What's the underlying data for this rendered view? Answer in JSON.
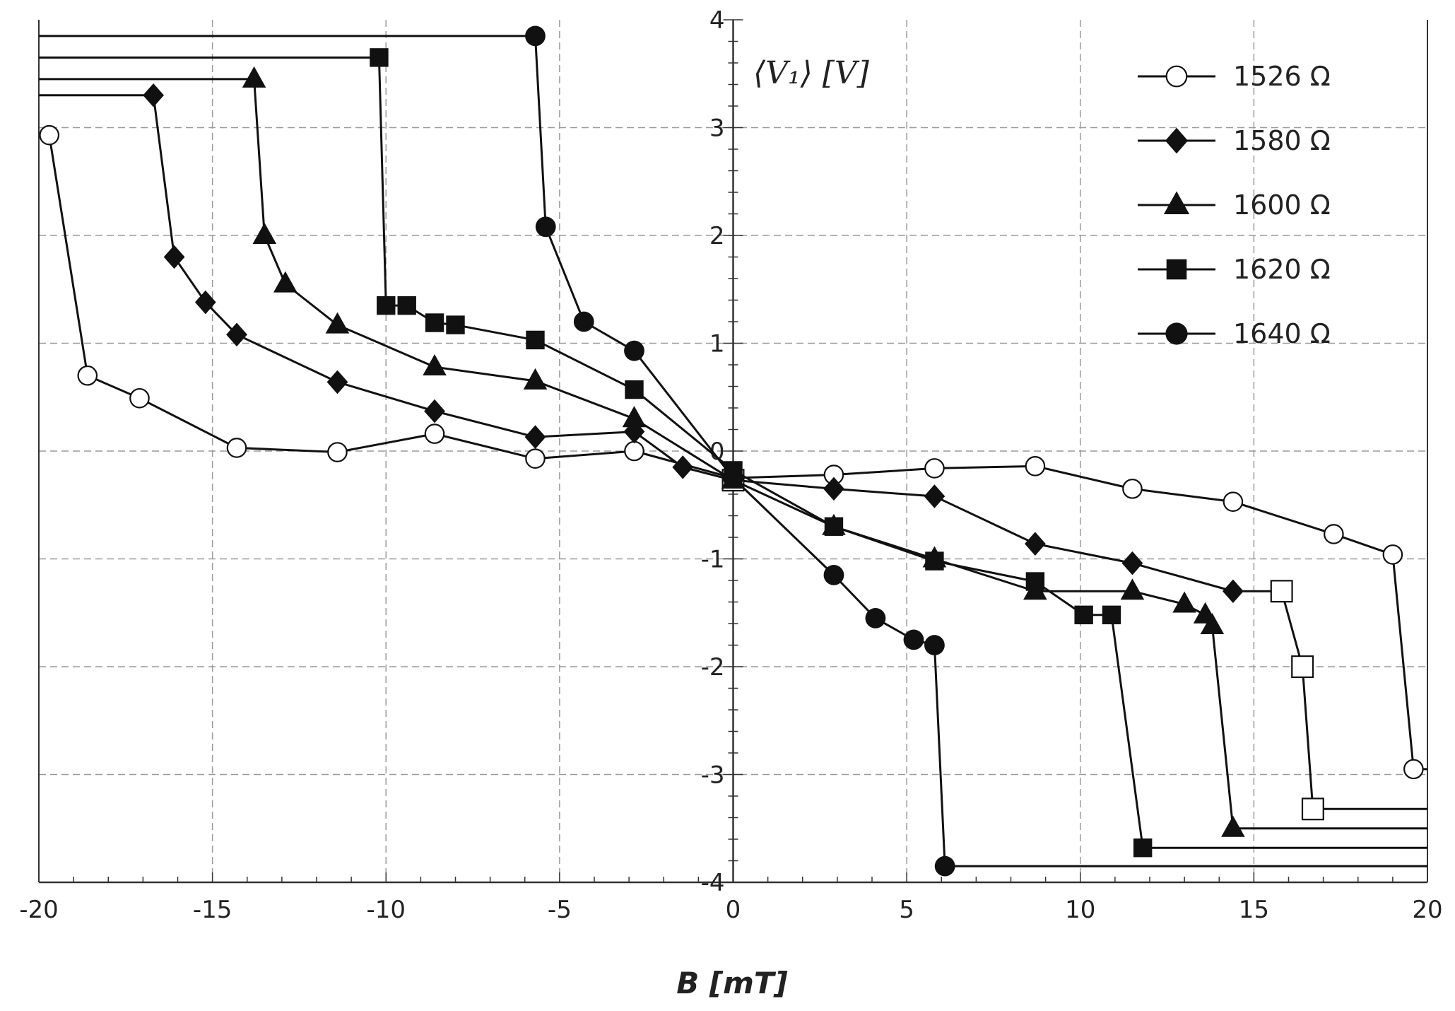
{
  "chart_data": {
    "type": "line",
    "title": "",
    "xlabel": "B  [mT]",
    "ylabel": "⟨V₁⟩ [V]",
    "xlim": [
      -20,
      20
    ],
    "ylim": [
      -4,
      4
    ],
    "xticks": [
      -20,
      -15,
      -10,
      -5,
      0,
      5,
      10,
      15,
      20
    ],
    "yticks": [
      -4,
      -3,
      -2,
      -1,
      0,
      1,
      2,
      3,
      4
    ],
    "grid": true,
    "legend_position": "top-right",
    "series": [
      {
        "name": "1526 Ω",
        "marker": "open-circle",
        "x": [
          -19.7,
          -18.6,
          -17.1,
          -14.3,
          -11.4,
          -8.6,
          -5.7,
          -2.85,
          0,
          2.9,
          5.8,
          8.7,
          11.5,
          14.4,
          17.3,
          19.0,
          19.6
        ],
        "y": [
          2.93,
          0.7,
          0.49,
          0.03,
          -0.01,
          0.16,
          -0.07,
          0.0,
          -0.25,
          -0.22,
          -0.16,
          -0.14,
          -0.35,
          -0.47,
          -0.77,
          -0.96,
          -2.95
        ],
        "guide": {
          "x_from": 19.6,
          "x_to": 20,
          "y": -2.95
        }
      },
      {
        "name": "1580 Ω",
        "marker": "filled-diamond",
        "x": [
          -16.7,
          -16.1,
          -15.2,
          -14.3,
          -11.4,
          -8.6,
          -5.7,
          -2.85,
          -1.45,
          0,
          2.9,
          5.8,
          8.7,
          11.5,
          14.4,
          15.8,
          16.4,
          16.7
        ],
        "y": [
          3.3,
          1.8,
          1.38,
          1.08,
          0.64,
          0.37,
          0.13,
          0.18,
          -0.15,
          -0.27,
          -0.35,
          -0.42,
          -0.86,
          -1.04,
          -1.3,
          -1.3,
          -2.0,
          -3.32
        ],
        "guide": {
          "x_from": -20,
          "x_to": -16.7,
          "y": 3.3
        },
        "guide_end": {
          "x_from": 16.7,
          "x_to": 20,
          "y": -3.32
        }
      },
      {
        "name": "1600 Ω",
        "marker": "filled-triangle",
        "x": [
          -13.8,
          -13.5,
          -12.9,
          -11.4,
          -8.6,
          -5.7,
          -2.85,
          0,
          2.9,
          5.8,
          8.7,
          11.5,
          13.0,
          13.6,
          13.8,
          14.4
        ],
        "y": [
          3.45,
          2.0,
          1.55,
          1.17,
          0.78,
          0.65,
          0.3,
          -0.27,
          -0.7,
          -1.0,
          -1.3,
          -1.3,
          -1.42,
          -1.52,
          -1.62,
          -3.5
        ],
        "guide": {
          "x_from": -20,
          "x_to": -13.8,
          "y": 3.45
        },
        "guide_end": {
          "x_from": 14.4,
          "x_to": 20,
          "y": -3.5
        }
      },
      {
        "name": "1620 Ω",
        "marker": "filled-square",
        "x": [
          -10.2,
          -10.0,
          -9.4,
          -8.6,
          -8.0,
          -5.7,
          -2.85,
          0,
          2.9,
          5.8,
          8.7,
          10.1,
          10.9,
          11.8
        ],
        "y": [
          3.65,
          1.35,
          1.35,
          1.19,
          1.17,
          1.03,
          0.57,
          -0.18,
          -0.7,
          -1.02,
          -1.21,
          -1.52,
          -1.52,
          -3.68
        ],
        "guide": {
          "x_from": -20,
          "x_to": -10.2,
          "y": 3.65
        },
        "guide_end": {
          "x_from": 11.8,
          "x_to": 20,
          "y": -3.68
        }
      },
      {
        "name": "1640 Ω",
        "marker": "filled-circle",
        "x": [
          -5.7,
          -5.4,
          -4.3,
          -2.85,
          0,
          2.9,
          4.1,
          5.2,
          5.8,
          6.1
        ],
        "y": [
          3.85,
          2.08,
          1.2,
          0.93,
          -0.25,
          -1.15,
          -1.55,
          -1.75,
          -1.8,
          -3.85
        ],
        "guide": {
          "x_from": -20,
          "x_to": -5.7,
          "y": 3.85
        },
        "guide_end": {
          "x_from": 6.1,
          "x_to": 20,
          "y": -3.85
        }
      }
    ]
  }
}
